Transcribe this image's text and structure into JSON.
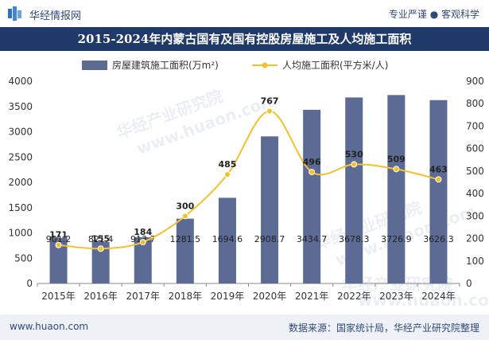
{
  "header": {
    "brand": "华经情报网",
    "tagline": "专业严谨 ● 客观科学",
    "title": "2015-2024年内蒙古国有及国有控股房屋施工及人均施工面积"
  },
  "footer": {
    "site": "www.huaon.com",
    "source": "数据来源：国家统计局，华经产业研究院整理"
  },
  "watermark": {
    "cn": "华经产业研究院",
    "en": "www.huaon.com"
  },
  "colors": {
    "bar": "#5b6b94",
    "line": "#f5c02a",
    "title_bg": "#1f3a68"
  },
  "chart_data": {
    "type": "bar",
    "categories": [
      "2015年",
      "2016年",
      "2017年",
      "2018年",
      "2019年",
      "2020年",
      "2021年",
      "2022年",
      "2023年",
      "2024年"
    ],
    "series": [
      {
        "name": "房屋建筑施工面积(万m²)",
        "type": "bar",
        "axis": "left",
        "values": [
          901.2,
          821.4,
          913.7,
          1281.5,
          1694.6,
          2908.7,
          3434.7,
          3678.3,
          3726.9,
          3626.3
        ],
        "labels": [
          "901.2",
          "821.4",
          "913.7",
          "1281.5",
          "1694.6",
          "2908.7",
          "3434.7",
          "3678.3",
          "3726.9",
          "3626.3"
        ]
      },
      {
        "name": "人均施工面积(平方米/人)",
        "type": "line",
        "axis": "right",
        "values": [
          171,
          155,
          184,
          300,
          485,
          767,
          496,
          530,
          509,
          463
        ],
        "labels": [
          "171",
          "155",
          "184",
          "300",
          "485",
          "767",
          "496",
          "530",
          "509",
          "463"
        ]
      }
    ],
    "ylim_left": [
      0,
      4000
    ],
    "yticks_left": [
      "0",
      "500",
      "1000",
      "1500",
      "2000",
      "2500",
      "3000",
      "3500",
      "4000"
    ],
    "ylim_right": [
      0,
      900
    ],
    "yticks_right": [
      "0",
      "100",
      "200",
      "300",
      "400",
      "500",
      "600",
      "700",
      "800",
      "900"
    ],
    "legend_position": "top",
    "grid": false
  }
}
